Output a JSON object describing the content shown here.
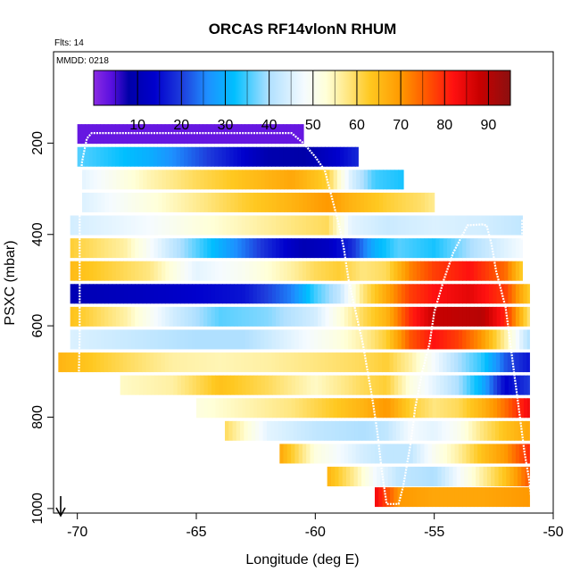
{
  "chart_data": {
    "type": "heatmap",
    "title": "ORCAS RF14vlonN RHUM",
    "subtitle_flts": "Flts: 14",
    "subtitle_mmdd": "MMDD: 0218",
    "xlabel": "Longitude (deg E)",
    "ylabel": "PSXC (mbar)",
    "xlim": [
      -71,
      -50
    ],
    "ylim": [
      1010,
      0
    ],
    "x_ticks": [
      -70,
      -65,
      -60,
      -55,
      -50
    ],
    "y_ticks": [
      200,
      400,
      600,
      800,
      1000
    ],
    "colorbar": {
      "range": [
        0,
        95
      ],
      "ticks": [
        10,
        20,
        30,
        40,
        50,
        60,
        70,
        80,
        90
      ],
      "stops": [
        [
          0,
          "#8A2BE2"
        ],
        [
          4,
          "#5A10E0"
        ],
        [
          8,
          "#0000A8"
        ],
        [
          14,
          "#0000CD"
        ],
        [
          20,
          "#1E3CDC"
        ],
        [
          26,
          "#1E90FF"
        ],
        [
          32,
          "#00BFFF"
        ],
        [
          40,
          "#B0E0FF"
        ],
        [
          48,
          "#F5FBFF"
        ],
        [
          53,
          "#FFFFD8"
        ],
        [
          58,
          "#FFE680"
        ],
        [
          63,
          "#FFC820"
        ],
        [
          70,
          "#FF9900"
        ],
        [
          76,
          "#FF5500"
        ],
        [
          82,
          "#FF1010"
        ],
        [
          88,
          "#C80000"
        ],
        [
          95,
          "#8B1010"
        ]
      ]
    },
    "bands": [
      {
        "p": 180,
        "xmin": -70.0,
        "xmax": -60.5,
        "v": [
          [
            -70.0,
            3
          ],
          [
            -60.5,
            3
          ]
        ]
      },
      {
        "p": 230,
        "xmin": -70.0,
        "xmax": -58.2,
        "v": [
          [
            -70.0,
            36
          ],
          [
            -67.0,
            30
          ],
          [
            -65.0,
            22
          ],
          [
            -63.0,
            14
          ],
          [
            -62.0,
            9
          ],
          [
            -60.5,
            8
          ],
          [
            -59.5,
            12
          ],
          [
            -58.2,
            18
          ]
        ]
      },
      {
        "p": 280,
        "xmin": -69.8,
        "xmax": -56.3,
        "v": [
          [
            -69.8,
            46
          ],
          [
            -67.0,
            55
          ],
          [
            -65.0,
            60
          ],
          [
            -63.0,
            64
          ],
          [
            -61.0,
            68
          ],
          [
            -59.5,
            62
          ],
          [
            -58.5,
            45
          ],
          [
            -57.5,
            35
          ],
          [
            -56.3,
            33
          ]
        ]
      },
      {
        "p": 330,
        "xmin": -69.8,
        "xmax": -55.0,
        "v": [
          [
            -69.8,
            45
          ],
          [
            -67.0,
            52
          ],
          [
            -65.0,
            57
          ],
          [
            -63.0,
            62
          ],
          [
            -61.0,
            66
          ],
          [
            -59.5,
            70
          ],
          [
            -58.5,
            66
          ],
          [
            -57.0,
            62
          ],
          [
            -55.5,
            59
          ],
          [
            -55.0,
            57
          ]
        ]
      },
      {
        "p": 380,
        "xmin": -70.3,
        "xmax": -51.3,
        "v": [
          [
            -70.3,
            44
          ],
          [
            -67.0,
            48
          ],
          [
            -65.0,
            52
          ],
          [
            -63.0,
            55
          ],
          [
            -61.0,
            58
          ],
          [
            -59.5,
            60
          ],
          [
            -58.5,
            46
          ],
          [
            -57.0,
            43
          ],
          [
            -55.0,
            45
          ],
          [
            -53.0,
            44
          ],
          [
            -51.3,
            42
          ]
        ]
      },
      {
        "p": 430,
        "xmin": -70.3,
        "xmax": -51.3,
        "v": [
          [
            -70.3,
            62
          ],
          [
            -68.0,
            56
          ],
          [
            -66.0,
            42
          ],
          [
            -64.0,
            30
          ],
          [
            -62.0,
            18
          ],
          [
            -60.5,
            10
          ],
          [
            -59.5,
            12
          ],
          [
            -58.5,
            18
          ],
          [
            -57.5,
            30
          ],
          [
            -56.5,
            36
          ],
          [
            -55.0,
            33
          ],
          [
            -53.0,
            42
          ],
          [
            -51.3,
            48
          ]
        ]
      },
      {
        "p": 480,
        "xmin": -70.3,
        "xmax": -51.3,
        "v": [
          [
            -70.3,
            65
          ],
          [
            -67.0,
            58
          ],
          [
            -65.0,
            46
          ],
          [
            -63.0,
            50
          ],
          [
            -61.0,
            56
          ],
          [
            -60.0,
            60
          ],
          [
            -59.0,
            62
          ],
          [
            -58.0,
            58
          ],
          [
            -57.0,
            60
          ],
          [
            -56.0,
            72
          ],
          [
            -55.0,
            78
          ],
          [
            -53.5,
            82
          ],
          [
            -52.0,
            74
          ],
          [
            -51.3,
            62
          ]
        ]
      },
      {
        "p": 530,
        "xmin": -70.3,
        "xmax": -51.0,
        "v": [
          [
            -70.3,
            10
          ],
          [
            -67.0,
            12
          ],
          [
            -65.0,
            14
          ],
          [
            -63.0,
            16
          ],
          [
            -61.0,
            25
          ],
          [
            -60.0,
            35
          ],
          [
            -59.0,
            42
          ],
          [
            -58.0,
            58
          ],
          [
            -57.0,
            68
          ],
          [
            -56.0,
            78
          ],
          [
            -55.0,
            82
          ],
          [
            -53.5,
            85
          ],
          [
            -52.0,
            78
          ],
          [
            -51.0,
            62
          ]
        ]
      },
      {
        "p": 580,
        "xmin": -70.3,
        "xmax": -51.0,
        "v": [
          [
            -70.3,
            64
          ],
          [
            -68.0,
            56
          ],
          [
            -66.0,
            44
          ],
          [
            -64.0,
            36
          ],
          [
            -62.0,
            38
          ],
          [
            -60.0,
            44
          ],
          [
            -59.0,
            52
          ],
          [
            -58.0,
            60
          ],
          [
            -57.0,
            66
          ],
          [
            -56.0,
            80
          ],
          [
            -55.0,
            88
          ],
          [
            -53.0,
            90
          ],
          [
            -52.0,
            80
          ],
          [
            -51.0,
            58
          ]
        ]
      },
      {
        "p": 630,
        "xmin": -70.3,
        "xmax": -51.0,
        "v": [
          [
            -70.3,
            45
          ],
          [
            -67.0,
            42
          ],
          [
            -65.0,
            40
          ],
          [
            -63.0,
            40
          ],
          [
            -61.0,
            46
          ],
          [
            -59.0,
            52
          ],
          [
            -58.0,
            56
          ],
          [
            -57.0,
            62
          ],
          [
            -56.0,
            76
          ],
          [
            -55.0,
            82
          ],
          [
            -54.0,
            78
          ],
          [
            -53.0,
            70
          ],
          [
            -52.0,
            56
          ],
          [
            -51.0,
            40
          ]
        ]
      },
      {
        "p": 680,
        "xmin": -70.8,
        "xmax": -51.0,
        "v": [
          [
            -70.8,
            66
          ],
          [
            -68.0,
            60
          ],
          [
            -66.0,
            56
          ],
          [
            -64.0,
            55
          ],
          [
            -62.0,
            56
          ],
          [
            -60.0,
            58
          ],
          [
            -58.0,
            60
          ],
          [
            -57.0,
            62
          ],
          [
            -56.0,
            56
          ],
          [
            -55.0,
            48
          ],
          [
            -54.0,
            40
          ],
          [
            -53.0,
            34
          ],
          [
            -52.0,
            22
          ],
          [
            -51.0,
            16
          ]
        ]
      },
      {
        "p": 730,
        "xmin": -68.2,
        "xmax": -51.0,
        "v": [
          [
            -68.2,
            54
          ],
          [
            -66.0,
            56
          ],
          [
            -64.0,
            64
          ],
          [
            -62.0,
            60
          ],
          [
            -60.0,
            54
          ],
          [
            -58.0,
            60
          ],
          [
            -57.0,
            62
          ],
          [
            -56.0,
            52
          ],
          [
            -55.0,
            46
          ],
          [
            -54.0,
            40
          ],
          [
            -53.0,
            30
          ],
          [
            -52.0,
            14
          ],
          [
            -51.0,
            20
          ]
        ]
      },
      {
        "p": 780,
        "xmin": -65.0,
        "xmax": -51.0,
        "v": [
          [
            -65.0,
            52
          ],
          [
            -63.0,
            55
          ],
          [
            -61.0,
            58
          ],
          [
            -59.5,
            62
          ],
          [
            -58.0,
            66
          ],
          [
            -57.0,
            70
          ],
          [
            -56.0,
            62
          ],
          [
            -55.0,
            58
          ],
          [
            -54.0,
            60
          ],
          [
            -53.0,
            66
          ],
          [
            -52.0,
            74
          ],
          [
            -51.0,
            84
          ]
        ]
      },
      {
        "p": 830,
        "xmin": -63.8,
        "xmax": -51.0,
        "v": [
          [
            -63.8,
            60
          ],
          [
            -62.0,
            46
          ],
          [
            -60.0,
            42
          ],
          [
            -58.0,
            40
          ],
          [
            -57.0,
            42
          ],
          [
            -56.0,
            48
          ],
          [
            -55.0,
            46
          ],
          [
            -54.0,
            50
          ],
          [
            -53.0,
            58
          ],
          [
            -52.0,
            64
          ],
          [
            -51.0,
            68
          ]
        ]
      },
      {
        "p": 880,
        "xmin": -61.5,
        "xmax": -51.0,
        "v": [
          [
            -61.5,
            68
          ],
          [
            -60.0,
            52
          ],
          [
            -58.0,
            44
          ],
          [
            -57.0,
            42
          ],
          [
            -56.0,
            42
          ],
          [
            -55.0,
            50
          ],
          [
            -54.0,
            56
          ],
          [
            -53.0,
            64
          ],
          [
            -52.0,
            70
          ],
          [
            -51.0,
            80
          ]
        ]
      },
      {
        "p": 930,
        "xmin": -59.5,
        "xmax": -51.0,
        "v": [
          [
            -59.5,
            66
          ],
          [
            -58.5,
            58
          ],
          [
            -57.5,
            48
          ],
          [
            -56.5,
            42
          ],
          [
            -55.0,
            40
          ],
          [
            -54.0,
            48
          ],
          [
            -53.0,
            56
          ],
          [
            -52.0,
            64
          ],
          [
            -51.0,
            76
          ]
        ]
      },
      {
        "p": 975,
        "xmin": -57.5,
        "xmax": -51.0,
        "v": [
          [
            -57.5,
            84
          ],
          [
            -56.5,
            70
          ],
          [
            -55.0,
            68
          ],
          [
            -53.0,
            68
          ],
          [
            -51.0,
            70
          ]
        ]
      }
    ],
    "flight_track": [
      [
        -70.0,
        1000
      ],
      [
        -70.0,
        860
      ],
      [
        -69.9,
        620
      ],
      [
        -69.9,
        430
      ],
      [
        -69.9,
        300
      ],
      [
        -69.8,
        240
      ],
      [
        -69.6,
        190
      ],
      [
        -69.4,
        178
      ],
      [
        -65.0,
        178
      ],
      [
        -62.0,
        178
      ],
      [
        -61.0,
        178
      ],
      [
        -60.5,
        200
      ],
      [
        -60.0,
        230
      ],
      [
        -59.6,
        260
      ],
      [
        -59.3,
        320
      ],
      [
        -59.0,
        380
      ],
      [
        -58.8,
        430
      ],
      [
        -58.6,
        500
      ],
      [
        -58.3,
        570
      ],
      [
        -58.0,
        640
      ],
      [
        -57.8,
        700
      ],
      [
        -57.6,
        760
      ],
      [
        -57.4,
        830
      ],
      [
        -57.2,
        920
      ],
      [
        -57.0,
        990
      ],
      [
        -56.5,
        990
      ],
      [
        -56.3,
        950
      ],
      [
        -56.0,
        860
      ],
      [
        -55.8,
        780
      ],
      [
        -55.5,
        700
      ],
      [
        -55.2,
        640
      ],
      [
        -55.0,
        570
      ],
      [
        -54.6,
        500
      ],
      [
        -54.2,
        440
      ],
      [
        -53.6,
        380
      ],
      [
        -53.0,
        378
      ],
      [
        -52.8,
        380
      ],
      [
        -52.6,
        420
      ],
      [
        -52.4,
        480
      ],
      [
        -52.0,
        560
      ],
      [
        -51.8,
        640
      ],
      [
        -51.6,
        720
      ],
      [
        -51.4,
        800
      ],
      [
        -51.2,
        880
      ],
      [
        -51.0,
        940
      ],
      [
        -50.9,
        990
      ]
    ],
    "markers": {
      "up_tick_x": -51.3,
      "up_tick_p": 380,
      "down_arrow_x": -70.7
    }
  }
}
